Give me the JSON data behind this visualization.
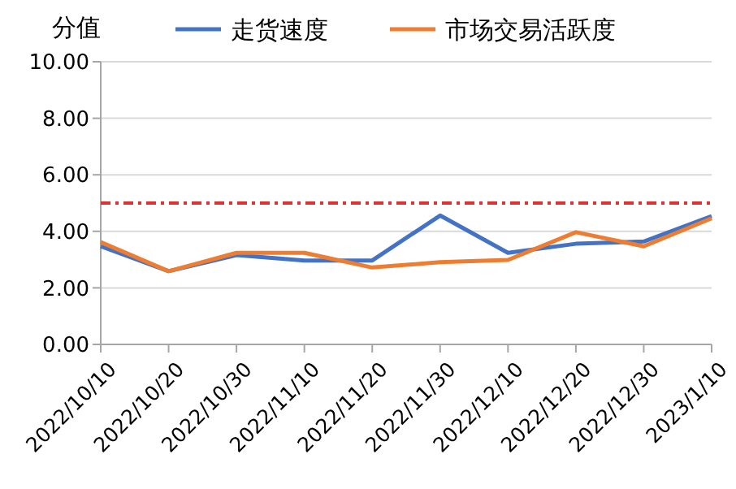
{
  "chart_data": {
    "type": "line",
    "ylabel": "分值",
    "categories": [
      "2022/10/10",
      "2022/10/20",
      "2022/10/30",
      "2022/11/10",
      "2022/11/20",
      "2022/11/30",
      "2022/12/10",
      "2022/12/20",
      "2022/12/30",
      "2023/1/10"
    ],
    "series": [
      {
        "name": "走货速度",
        "color": "#4472c4",
        "values": [
          3.47,
          2.59,
          3.16,
          2.97,
          2.97,
          4.56,
          3.24,
          3.56,
          3.64,
          4.54
        ]
      },
      {
        "name": "市场交易活跃度",
        "color": "#ed7d31",
        "values": [
          3.62,
          2.59,
          3.24,
          3.24,
          2.72,
          2.91,
          2.99,
          3.97,
          3.47,
          4.46
        ]
      }
    ],
    "ylim": [
      0,
      10
    ],
    "yticks": [
      {
        "value": 0,
        "label": "0.00"
      },
      {
        "value": 2,
        "label": "2.00"
      },
      {
        "value": 4,
        "label": "4.00"
      },
      {
        "value": 6,
        "label": "6.00"
      },
      {
        "value": 8,
        "label": "8.00"
      },
      {
        "value": 10,
        "label": "10.00"
      }
    ],
    "grid": "y",
    "legend": "top",
    "marker": "none",
    "line_style": "solid",
    "ref_lines": [
      {
        "axis": "y",
        "value": 5,
        "label": null,
        "color": "#e03030",
        "line_style": "dashdot"
      }
    ]
  }
}
